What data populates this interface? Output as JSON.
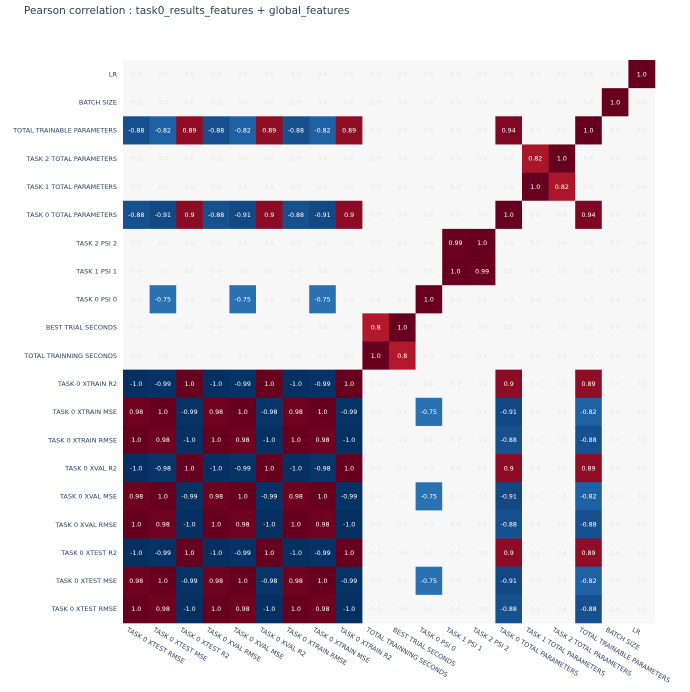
{
  "chart_data": {
    "type": "heatmap",
    "title": "Pearson correlation : task0_results_features + global_features",
    "x_categories": [
      "TASK 0 XTEST RMSE",
      "TASK 0 XTEST MSE",
      "TASK 0 XTEST R2",
      "TASK 0 XVAL RMSE",
      "TASK 0 XVAL MSE",
      "TASK 0 XVAL R2",
      "TASK 0 XTRAIN RMSE",
      "TASK 0 XTRAIN MSE",
      "TASK 0 XTRAIN R2",
      "TOTAL TRAINNING SECONDS",
      "BEST TRIAL SECONDS",
      "TASK 0 PSI 0",
      "TASK 1 PSI 1",
      "TASK 2 PSI 2",
      "TASK 0 TOTAL PARAMETERS",
      "TASK 1 TOTAL PARAMETERS",
      "TASK 2 TOTAL PARAMETERS",
      "TOTAL TRAINABLE PARAMETERS",
      "BATCH SIZE",
      "LR"
    ],
    "y_categories": [
      "LR",
      "BATCH SIZE",
      "TOTAL TRAINABLE PARAMETERS",
      "TASK 2 TOTAL PARAMETERS",
      "TASK 1 TOTAL PARAMETERS",
      "TASK 0 TOTAL PARAMETERS",
      "TASK 2 PSI 2",
      "TASK 1 PSI 1",
      "TASK 0 PSI 0",
      "BEST TRIAL SECONDS",
      "TOTAL TRAINNING SECONDS",
      "TASK 0 XTRAIN R2",
      "TASK 0 XTRAIN MSE",
      "TASK 0 XTRAIN RMSE",
      "TASK 0 XVAL R2",
      "TASK 0 XVAL MSE",
      "TASK 0 XVAL RMSE",
      "TASK 0 XTEST R2",
      "TASK 0 XTEST MSE",
      "TASK 0 XTEST RMSE"
    ],
    "z": [
      [
        0,
        0,
        0,
        0,
        0,
        0,
        0,
        0,
        0,
        0,
        0,
        0,
        0,
        0,
        0,
        0,
        0,
        0,
        0,
        1.0
      ],
      [
        0,
        0,
        0,
        0,
        0,
        0,
        0,
        0,
        0,
        0,
        0,
        0,
        0,
        0,
        0,
        0,
        0,
        0,
        1.0,
        0
      ],
      [
        -0.88,
        -0.82,
        0.89,
        -0.88,
        -0.82,
        0.89,
        -0.88,
        -0.82,
        0.89,
        0,
        0,
        0,
        0,
        0,
        0.94,
        0,
        0,
        1.0,
        0,
        0
      ],
      [
        0,
        0,
        0,
        0,
        0,
        0,
        0,
        0,
        0,
        0,
        0,
        0,
        0,
        0,
        0,
        0.82,
        1.0,
        0,
        0,
        0
      ],
      [
        0,
        0,
        0,
        0,
        0,
        0,
        0,
        0,
        0,
        0,
        0,
        0,
        0,
        0,
        0,
        1.0,
        0.82,
        0,
        0,
        0
      ],
      [
        -0.88,
        -0.91,
        0.9,
        -0.88,
        -0.91,
        0.9,
        -0.88,
        -0.91,
        0.9,
        0,
        0,
        0,
        0,
        0,
        1.0,
        0,
        0,
        0.94,
        0,
        0
      ],
      [
        0,
        0,
        0,
        0,
        0,
        0,
        0,
        0,
        0,
        0,
        0,
        0,
        0.99,
        1.0,
        0,
        0,
        0,
        0,
        0,
        0
      ],
      [
        0,
        0,
        0,
        0,
        0,
        0,
        0,
        0,
        0,
        0,
        0,
        0,
        1.0,
        0.99,
        0,
        0,
        0,
        0,
        0,
        0
      ],
      [
        0,
        -0.75,
        0,
        0,
        -0.75,
        0,
        0,
        -0.75,
        0,
        0,
        0,
        1.0,
        0,
        0,
        0,
        0,
        0,
        0,
        0,
        0
      ],
      [
        0,
        0,
        0,
        0,
        0,
        0,
        0,
        0,
        0,
        0.8,
        1.0,
        0,
        0,
        0,
        0,
        0,
        0,
        0,
        0,
        0
      ],
      [
        0,
        0,
        0,
        0,
        0,
        0,
        0,
        0,
        0,
        1.0,
        0.8,
        0,
        0,
        0,
        0,
        0,
        0,
        0,
        0,
        0
      ],
      [
        -1.0,
        -0.99,
        1.0,
        -1.0,
        -0.99,
        1.0,
        -1.0,
        -0.99,
        1.0,
        0,
        0,
        0,
        0,
        0,
        0.9,
        0,
        0,
        0.89,
        0,
        0
      ],
      [
        0.98,
        1.0,
        -0.99,
        0.98,
        1.0,
        -0.98,
        0.98,
        1.0,
        -0.99,
        0,
        0,
        -0.75,
        0,
        0,
        -0.91,
        0,
        0,
        -0.82,
        0,
        0
      ],
      [
        1.0,
        0.98,
        -1.0,
        1.0,
        0.98,
        -1.0,
        1.0,
        0.98,
        -1.0,
        0,
        0,
        0,
        0,
        0,
        -0.88,
        0,
        0,
        -0.88,
        0,
        0
      ],
      [
        -1.0,
        -0.98,
        1.0,
        -1.0,
        -0.99,
        1.0,
        -1.0,
        -0.98,
        1.0,
        0,
        0,
        0,
        0,
        0,
        0.9,
        0,
        0,
        0.89,
        0,
        0
      ],
      [
        0.98,
        1.0,
        -0.99,
        0.98,
        1.0,
        -0.99,
        0.98,
        1.0,
        -0.99,
        0,
        0,
        -0.75,
        0,
        0,
        -0.91,
        0,
        0,
        -0.82,
        0,
        0
      ],
      [
        1.0,
        0.98,
        -1.0,
        1.0,
        0.98,
        -1.0,
        1.0,
        0.98,
        -1.0,
        0,
        0,
        0,
        0,
        0,
        -0.88,
        0,
        0,
        -0.88,
        0,
        0
      ],
      [
        -1.0,
        -0.99,
        1.0,
        -1.0,
        -0.99,
        1.0,
        -1.0,
        -0.99,
        1.0,
        0,
        0,
        0,
        0,
        0,
        0.9,
        0,
        0,
        0.89,
        0,
        0
      ],
      [
        0.98,
        1.0,
        -0.99,
        0.98,
        1.0,
        -0.98,
        0.98,
        1.0,
        -0.99,
        0,
        0,
        -0.75,
        0,
        0,
        -0.91,
        0,
        0,
        -0.82,
        0,
        0
      ],
      [
        1.0,
        0.98,
        -1.0,
        1.0,
        0.98,
        -1.0,
        1.0,
        0.98,
        -1.0,
        0,
        0,
        0,
        0,
        0,
        -0.88,
        0,
        0,
        -0.88,
        0,
        0
      ]
    ],
    "zero_label": "0.0",
    "zmin": -1.0,
    "zmax": 1.0,
    "colorscale": "RdBu reversed"
  }
}
